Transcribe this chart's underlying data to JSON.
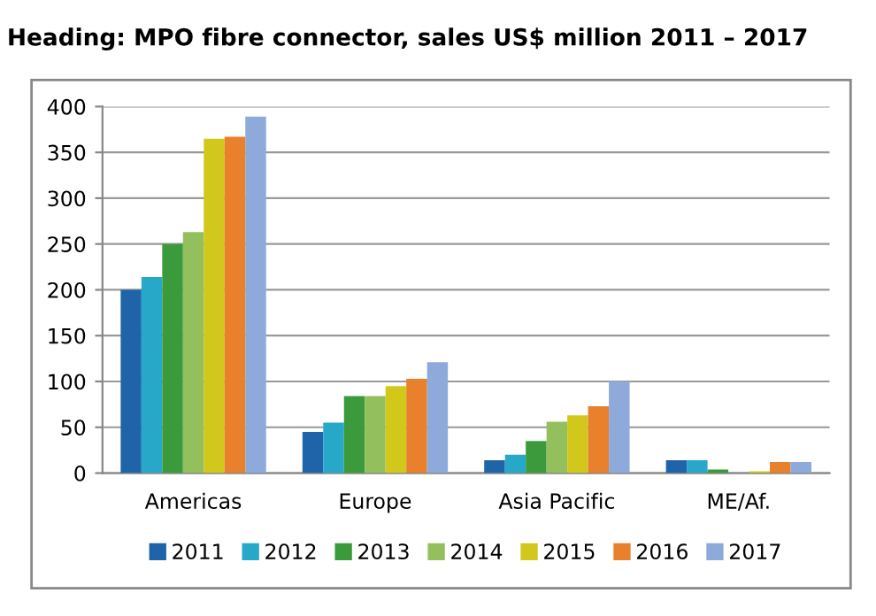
{
  "chart_data": {
    "type": "bar",
    "title": "Heading: MPO fibre connector, sales US$ million 2011 – 2017",
    "categories": [
      "Americas",
      "Europe",
      "Asia Pacific",
      "ME/Af."
    ],
    "series": [
      {
        "name": "2011",
        "color": "#1f64a8",
        "values": [
          200,
          45,
          14,
          14
        ]
      },
      {
        "name": "2012",
        "color": "#28a8c8",
        "values": [
          214,
          55,
          20,
          14
        ]
      },
      {
        "name": "2013",
        "color": "#3b9a3b",
        "values": [
          250,
          84,
          35,
          4
        ]
      },
      {
        "name": "2014",
        "color": "#93c05c",
        "values": [
          263,
          84,
          56,
          0
        ]
      },
      {
        "name": "2015",
        "color": "#d2c81c",
        "values": [
          365,
          95,
          63,
          2
        ]
      },
      {
        "name": "2016",
        "color": "#e8802c",
        "values": [
          367,
          103,
          73,
          12
        ]
      },
      {
        "name": "2017",
        "color": "#8eaadb",
        "values": [
          389,
          121,
          100,
          12
        ]
      }
    ],
    "ylim": [
      0,
      400
    ],
    "yticks": [
      0,
      50,
      100,
      150,
      200,
      250,
      300,
      350,
      400
    ],
    "grid": "y",
    "legend": "bottom"
  }
}
